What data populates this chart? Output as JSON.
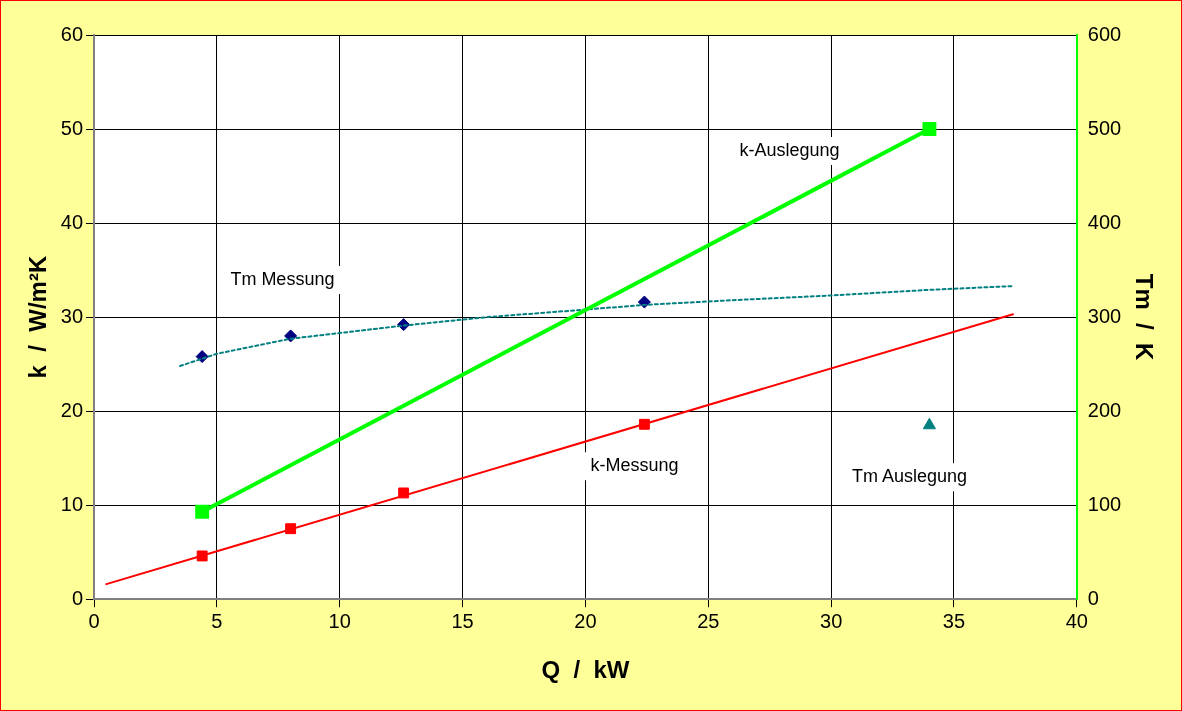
{
  "chart_data": {
    "type": "scatter",
    "xlabel": "Q  /  kW",
    "ylabel": "k  /  W/m²K",
    "y2label": "Tm  /  K",
    "xlim": [
      0,
      40
    ],
    "xticks": [
      0,
      5,
      10,
      15,
      20,
      25,
      30,
      35,
      40
    ],
    "ylim": [
      0,
      60
    ],
    "yticks": [
      0,
      10,
      20,
      30,
      40,
      50,
      60
    ],
    "y2lim": [
      0,
      600
    ],
    "y2ticks": [
      0,
      100,
      200,
      300,
      400,
      500,
      600
    ],
    "grid": true,
    "legend": false,
    "series": [
      {
        "type": "line",
        "color": "#ff0000",
        "x": [
          0.5,
          37.4
        ],
        "values": [
          1.6,
          30.3
        ],
        "marker": "none",
        "line_style": "solid"
      },
      {
        "type": "scatter",
        "name": "k-Messung",
        "color": "#ff0000",
        "x": [
          4.4,
          8,
          12.6,
          22.4
        ],
        "values": [
          4.6,
          7.5,
          11.3,
          18.6
        ],
        "marker": "square"
      },
      {
        "type": "line",
        "name": "k-Auslegung",
        "color": "#00ff00",
        "x": [
          4.4,
          34
        ],
        "values": [
          9.3,
          50
        ],
        "marker": "square",
        "line_style": "solid"
      },
      {
        "type": "line",
        "color": "#008080",
        "axis": "y2",
        "x": [
          3.5,
          5,
          8,
          12.6,
          16,
          20,
          22.4,
          26,
          30,
          34,
          37.4
        ],
        "values": [
          248,
          261,
          277,
          291,
          300,
          308,
          313,
          318,
          323,
          329,
          333
        ],
        "marker": "none",
        "line_style": "dotted"
      },
      {
        "type": "scatter",
        "name": "Tm Messung",
        "color": "#000080",
        "axis": "y2",
        "x": [
          4.4,
          8,
          12.6,
          22.4
        ],
        "values": [
          258,
          280,
          292,
          316
        ],
        "marker": "diamond"
      },
      {
        "type": "scatter",
        "name": "Tm Auslegung",
        "color": "#008080",
        "axis": "y2",
        "x": [
          34
        ],
        "values": [
          185
        ],
        "marker": "triangle"
      }
    ]
  }
}
